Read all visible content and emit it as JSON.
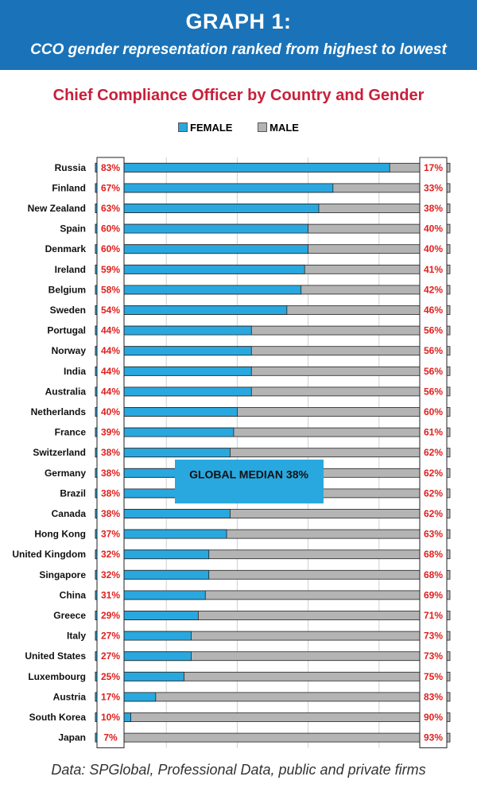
{
  "header": {
    "title": "GRAPH 1:",
    "subtitle": "CCO gender representation ranked from highest to lowest"
  },
  "footer": {
    "source": "Data: SPGlobal, Professional Data, public and private firms"
  },
  "colors": {
    "banner": "#1a73b8",
    "title": "#c8203a",
    "female": "#29a8df",
    "male": "#b4b4b4",
    "label_red": "#e0201e",
    "median_box": "#29a8df"
  },
  "chart_data": {
    "type": "bar",
    "orientation": "horizontal",
    "stacked": true,
    "title": "Chief Compliance Officer by Country and Gender",
    "legend_position": "top-center",
    "categories": [
      "Russia",
      "Finland",
      "New Zealand",
      "Spain",
      "Denmark",
      "Ireland",
      "Belgium",
      "Sweden",
      "Portugal",
      "Norway",
      "India",
      "Australia",
      "Netherlands",
      "France",
      "Switzerland",
      "Germany",
      "Brazil",
      "Canada",
      "Hong Kong",
      "United Kingdom",
      "Singapore",
      "China",
      "Greece",
      "Italy",
      "United States",
      "Luxembourg",
      "Austria",
      "South Korea",
      "Japan"
    ],
    "series": [
      {
        "name": "FEMALE",
        "values": [
          83,
          67,
          63,
          60,
          60,
          59,
          58,
          54,
          44,
          44,
          44,
          44,
          40,
          39,
          38,
          38,
          38,
          38,
          37,
          32,
          32,
          31,
          29,
          27,
          27,
          25,
          17,
          10,
          7
        ]
      },
      {
        "name": "MALE",
        "values": [
          17,
          33,
          38,
          40,
          40,
          41,
          42,
          46,
          56,
          56,
          56,
          56,
          60,
          61,
          62,
          62,
          62,
          62,
          63,
          68,
          68,
          69,
          71,
          73,
          73,
          75,
          83,
          90,
          93
        ]
      }
    ],
    "female_labels": [
      "83%",
      "67%",
      "63%",
      "60%",
      "60%",
      "59%",
      "58%",
      "54%",
      "44%",
      "44%",
      "44%",
      "44%",
      "40%",
      "39%",
      "38%",
      "38%",
      "38%",
      "38%",
      "37%",
      "32%",
      "32%",
      "31%",
      "29%",
      "27%",
      "27%",
      "25%",
      "17%",
      "10%",
      "7%"
    ],
    "male_labels": [
      "17%",
      "33%",
      "38%",
      "40%",
      "40%",
      "41%",
      "42%",
      "46%",
      "56%",
      "56%",
      "56%",
      "56%",
      "60%",
      "61%",
      "62%",
      "62%",
      "62%",
      "62%",
      "63%",
      "68%",
      "68%",
      "69%",
      "71%",
      "73%",
      "73%",
      "75%",
      "83%",
      "90%",
      "93%"
    ],
    "xlim": [
      0,
      100
    ],
    "grid": true,
    "annotation": {
      "text": "GLOBAL MEDIAN 38%",
      "value": 38,
      "rows": [
        "Germany",
        "Brazil"
      ]
    }
  }
}
